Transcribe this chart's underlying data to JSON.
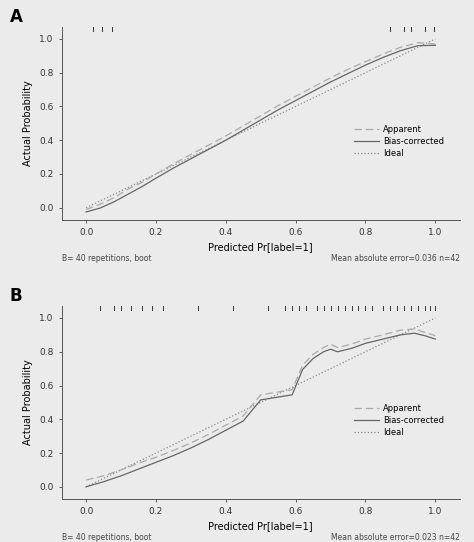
{
  "panel_A_label": "A",
  "panel_B_label": "B",
  "xlabel": "Predicted Pr[label=1]",
  "ylabel": "Actual Probability",
  "xlim": [
    -0.07,
    1.07
  ],
  "ylim": [
    -0.07,
    1.07
  ],
  "xticks": [
    0.0,
    0.2,
    0.4,
    0.6,
    0.8,
    1.0
  ],
  "yticks": [
    0.0,
    0.2,
    0.4,
    0.6,
    0.8,
    1.0
  ],
  "footer_left": "B= 40 repetitions, boot",
  "footer_right_A": "Mean absolute error=0.036 n=42",
  "footer_right_B": "Mean absolute error=0.023 n=42",
  "apparent_color": "#aaaaaa",
  "biascorr_color": "#666666",
  "ideal_color": "#888888",
  "rug_color": "#333333",
  "panel_A": {
    "apparent_x": [
      0.0,
      0.04,
      0.08,
      0.12,
      0.16,
      0.2,
      0.25,
      0.3,
      0.35,
      0.4,
      0.45,
      0.5,
      0.55,
      0.6,
      0.65,
      0.7,
      0.75,
      0.8,
      0.85,
      0.9,
      0.95,
      1.0
    ],
    "apparent_y": [
      -0.01,
      0.02,
      0.06,
      0.11,
      0.15,
      0.2,
      0.26,
      0.315,
      0.37,
      0.425,
      0.485,
      0.545,
      0.605,
      0.66,
      0.715,
      0.77,
      0.82,
      0.865,
      0.91,
      0.95,
      0.978,
      0.97
    ],
    "biascorr_x": [
      0.0,
      0.04,
      0.08,
      0.12,
      0.16,
      0.2,
      0.25,
      0.3,
      0.35,
      0.4,
      0.45,
      0.5,
      0.55,
      0.6,
      0.65,
      0.7,
      0.75,
      0.8,
      0.85,
      0.9,
      0.95,
      1.0
    ],
    "biascorr_y": [
      -0.025,
      -0.002,
      0.035,
      0.08,
      0.125,
      0.175,
      0.235,
      0.29,
      0.345,
      0.4,
      0.46,
      0.52,
      0.58,
      0.635,
      0.69,
      0.745,
      0.795,
      0.845,
      0.89,
      0.93,
      0.96,
      0.962
    ],
    "rug_top": [
      0.02,
      0.045,
      0.075,
      0.87,
      0.91,
      0.93,
      0.97,
      0.995
    ]
  },
  "panel_B": {
    "apparent_x": [
      0.0,
      0.05,
      0.1,
      0.15,
      0.2,
      0.25,
      0.3,
      0.35,
      0.4,
      0.45,
      0.5,
      0.53,
      0.56,
      0.59,
      0.62,
      0.65,
      0.68,
      0.7,
      0.72,
      0.74,
      0.76,
      0.78,
      0.8,
      0.85,
      0.9,
      0.94,
      0.97,
      1.0
    ],
    "apparent_y": [
      0.04,
      0.065,
      0.1,
      0.14,
      0.175,
      0.215,
      0.26,
      0.31,
      0.365,
      0.42,
      0.545,
      0.555,
      0.565,
      0.575,
      0.72,
      0.785,
      0.825,
      0.845,
      0.825,
      0.835,
      0.845,
      0.86,
      0.875,
      0.9,
      0.928,
      0.935,
      0.915,
      0.895
    ],
    "biascorr_x": [
      0.0,
      0.05,
      0.1,
      0.15,
      0.2,
      0.25,
      0.3,
      0.35,
      0.4,
      0.45,
      0.5,
      0.53,
      0.56,
      0.59,
      0.62,
      0.65,
      0.68,
      0.7,
      0.72,
      0.74,
      0.76,
      0.78,
      0.8,
      0.85,
      0.9,
      0.94,
      0.97,
      1.0
    ],
    "biascorr_y": [
      0.0,
      0.03,
      0.065,
      0.105,
      0.145,
      0.185,
      0.23,
      0.28,
      0.335,
      0.39,
      0.515,
      0.525,
      0.535,
      0.545,
      0.695,
      0.76,
      0.8,
      0.815,
      0.8,
      0.81,
      0.82,
      0.835,
      0.85,
      0.875,
      0.9,
      0.91,
      0.895,
      0.875
    ],
    "rug_top": [
      0.04,
      0.08,
      0.1,
      0.13,
      0.16,
      0.19,
      0.22,
      0.32,
      0.42,
      0.52,
      0.57,
      0.59,
      0.61,
      0.63,
      0.66,
      0.68,
      0.7,
      0.72,
      0.74,
      0.76,
      0.78,
      0.8,
      0.82,
      0.85,
      0.87,
      0.89,
      0.91,
      0.93,
      0.95,
      0.97,
      0.985,
      1.0
    ]
  }
}
